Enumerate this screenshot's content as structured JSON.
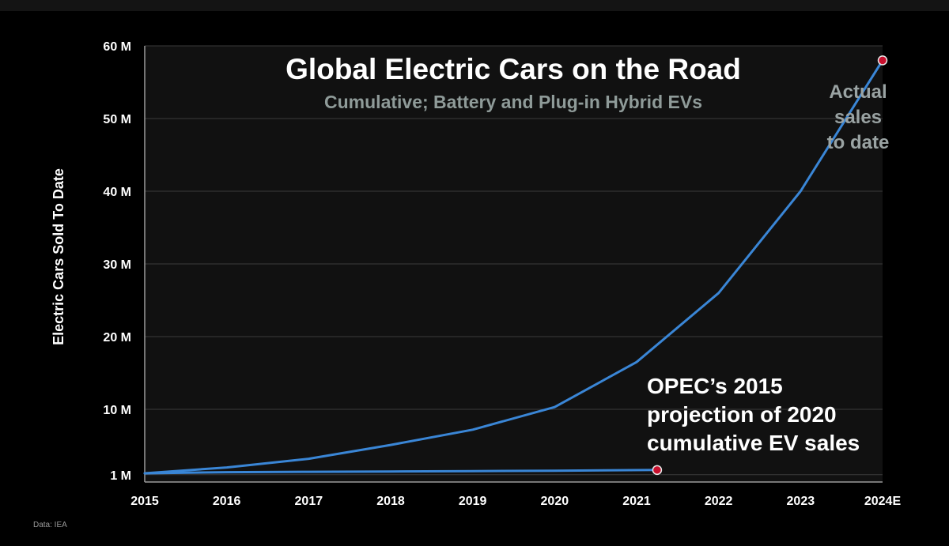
{
  "chart_data": {
    "type": "line",
    "title": "Global Electric Cars on the Road",
    "subtitle": "Cumulative; Battery and Plug-in Hybrid EVs",
    "ylabel": "Electric Cars Sold To Date",
    "xlabel": "",
    "categories": [
      "2015",
      "2016",
      "2017",
      "2018",
      "2019",
      "2020",
      "2021",
      "2022",
      "2023",
      "2024E"
    ],
    "x": [
      2015,
      2016,
      2017,
      2018,
      2019,
      2020,
      2021,
      2022,
      2023,
      2024
    ],
    "ytick_values": [
      1,
      10,
      20,
      30,
      40,
      50,
      60
    ],
    "ytick_labels": [
      "1 M",
      "10 M",
      "20 M",
      "30 M",
      "40 M",
      "50 M",
      "60 M"
    ],
    "ylim": [
      0,
      60
    ],
    "grid": true,
    "series": [
      {
        "name": "Actual sales to date",
        "x": [
          2015,
          2016,
          2017,
          2018,
          2019,
          2020,
          2021,
          2022,
          2023,
          2024
        ],
        "values": [
          1.2,
          2.0,
          3.2,
          5.1,
          7.2,
          10.3,
          16.5,
          26.0,
          40.0,
          58.0
        ],
        "end_marker": true
      },
      {
        "name": "OPEC's 2015 projection of 2020 cumulative EV sales",
        "x": [
          2015,
          2016,
          2017,
          2018,
          2019,
          2020,
          2021.25
        ],
        "values": [
          1.2,
          1.35,
          1.4,
          1.45,
          1.5,
          1.55,
          1.65
        ],
        "end_marker": true
      }
    ],
    "annotations": {
      "actual": [
        "Actual",
        "sales",
        "to date"
      ],
      "opec": [
        "OPEC’s 2015",
        "projection of 2020",
        "cumulative EV sales"
      ]
    },
    "source": "Data: IEA",
    "colors": {
      "line": "#3a86d6",
      "marker_fill": "#c8102e",
      "grid": "#3a3a3a",
      "plot_bg": "#111111"
    }
  }
}
